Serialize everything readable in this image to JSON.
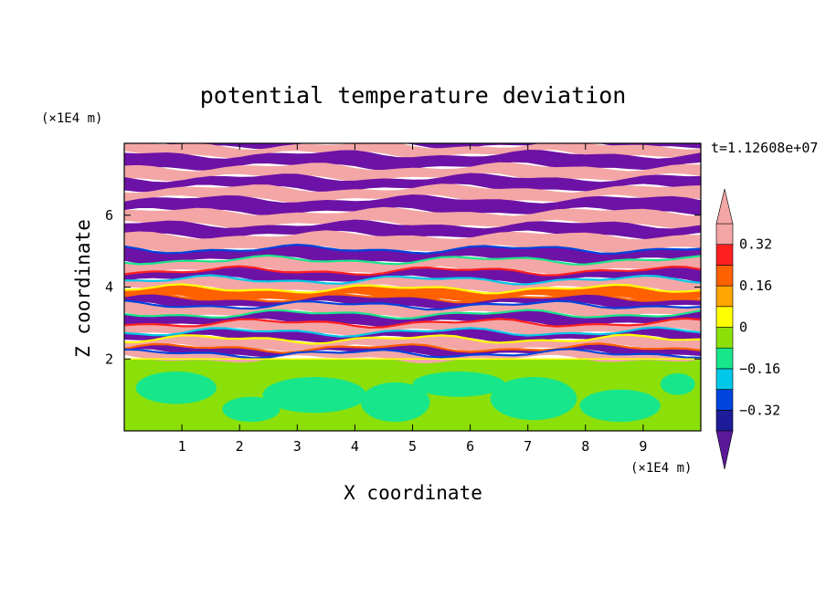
{
  "chart_data": {
    "type": "heatmap",
    "title": "potential temperature deviation",
    "xlabel": "X coordinate",
    "ylabel": "Z coordinate",
    "x_unit": "(×1E4 m)",
    "y_unit": "(×1E4 m)",
    "time_label": "t=1.12608e+07",
    "xlim": [
      0,
      10
    ],
    "ylim": [
      0,
      8
    ],
    "x_ticks": [
      1,
      2,
      3,
      4,
      5,
      6,
      7,
      8,
      9
    ],
    "y_ticks": [
      2,
      4,
      6
    ],
    "colorbar": {
      "levels": [
        -0.4,
        -0.32,
        -0.24,
        -0.16,
        -0.08,
        0,
        0.08,
        0.16,
        0.24,
        0.32,
        0.4
      ],
      "colors": [
        "#5a1a98",
        "#1d1d9b",
        "#0044dd",
        "#00c8e8",
        "#18e68a",
        "#8ce00a",
        "#ffff00",
        "#ffa500",
        "#ff6000",
        "#ff2020",
        "#f4a6a6"
      ],
      "labels": [
        "0.32",
        "0.16",
        "0",
        "−0.16",
        "−0.32"
      ],
      "label_values": [
        0.32,
        0.16,
        0,
        -0.16,
        -0.32
      ]
    },
    "stable_layer": {
      "z_base": 2.0,
      "above_colors": [
        "#f4a6a6",
        "#6d12a6"
      ],
      "below_colors": [
        "#8ce00a",
        "#18e68a"
      ]
    },
    "bands": [
      {
        "z": 7.95,
        "c": "#6d12a6"
      },
      {
        "z": 7.7,
        "c": "#f4a6a6"
      },
      {
        "z": 7.35,
        "c": "#6d12a6"
      },
      {
        "z": 7.05,
        "c": "#f4a6a6"
      },
      {
        "z": 6.75,
        "c": "#6d12a6"
      },
      {
        "z": 6.45,
        "c": "#f4a6a6"
      },
      {
        "z": 6.1,
        "c": "#6d12a6"
      },
      {
        "z": 5.75,
        "c": "#f4a6a6"
      },
      {
        "z": 5.45,
        "c": "#6d12a6"
      },
      {
        "z": 5.05,
        "c": "#f4a6a6"
      },
      {
        "z": 4.75,
        "c": "#6d12a6"
      },
      {
        "z": 4.45,
        "c": "#f4a6a6"
      },
      {
        "z": 4.2,
        "c": "#6d12a6"
      },
      {
        "z": 3.95,
        "c": "#f4a6a6"
      },
      {
        "z": 3.7,
        "c": "#ff6000"
      },
      {
        "z": 3.5,
        "c": "#6d12a6"
      },
      {
        "z": 3.25,
        "c": "#f4a6a6"
      },
      {
        "z": 3.0,
        "c": "#6d12a6"
      },
      {
        "z": 2.75,
        "c": "#f4a6a6"
      },
      {
        "z": 2.55,
        "c": "#6d12a6"
      },
      {
        "z": 2.3,
        "c": "#f4a6a6"
      },
      {
        "z": 2.15,
        "c": "#6d12a6"
      },
      {
        "z": 2.0,
        "c": "#f4a6a6"
      }
    ],
    "lower_blobs": [
      {
        "x": 0.9,
        "z": 1.2,
        "rx": 0.7,
        "rz": 0.45
      },
      {
        "x": 2.2,
        "z": 0.6,
        "rx": 0.5,
        "rz": 0.35
      },
      {
        "x": 3.3,
        "z": 1.0,
        "rx": 0.9,
        "rz": 0.5
      },
      {
        "x": 4.7,
        "z": 0.8,
        "rx": 0.6,
        "rz": 0.55
      },
      {
        "x": 5.8,
        "z": 1.3,
        "rx": 0.8,
        "rz": 0.35
      },
      {
        "x": 7.1,
        "z": 0.9,
        "rx": 0.75,
        "rz": 0.6
      },
      {
        "x": 8.6,
        "z": 0.7,
        "rx": 0.7,
        "rz": 0.45
      },
      {
        "x": 9.6,
        "z": 1.3,
        "rx": 0.3,
        "rz": 0.3
      }
    ]
  }
}
